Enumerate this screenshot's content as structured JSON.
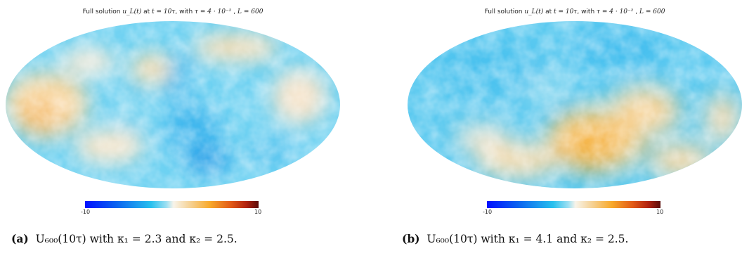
{
  "colors": {
    "cmap_min": "#0010ff",
    "cmap_cyan": "#27c0ee",
    "cmap_mid": "#f8f4ea",
    "cmap_orange": "#f8a92a",
    "cmap_max": "#5a0b08"
  },
  "panels": [
    {
      "label": "(a)",
      "title": {
        "prefix": "Full solution ",
        "var": "u_L(t)",
        "mid": " at ",
        "time": "t = 10τ",
        "sep": ", with ",
        "tau": "τ = 4 · 10⁻²",
        "sep2": " , ",
        "L": "L = 600"
      },
      "colorbar": {
        "min": "-10",
        "max": "10"
      },
      "caption": "U₆₀₀(10τ) with κ₁ = 2.3 and κ₂ = 2.5."
    },
    {
      "label": "(b)",
      "title": {
        "prefix": "Full solution ",
        "var": "u_L(t)",
        "mid": " at ",
        "time": "t = 10τ",
        "sep": ", with ",
        "tau": "τ = 4 · 10⁻²",
        "sep2": " , ",
        "L": "L = 600"
      },
      "colorbar": {
        "min": "-10",
        "max": "10"
      },
      "caption": "U₆₀₀(10τ) with κ₁ = 4.1 and κ₂ = 2.5."
    }
  ]
}
